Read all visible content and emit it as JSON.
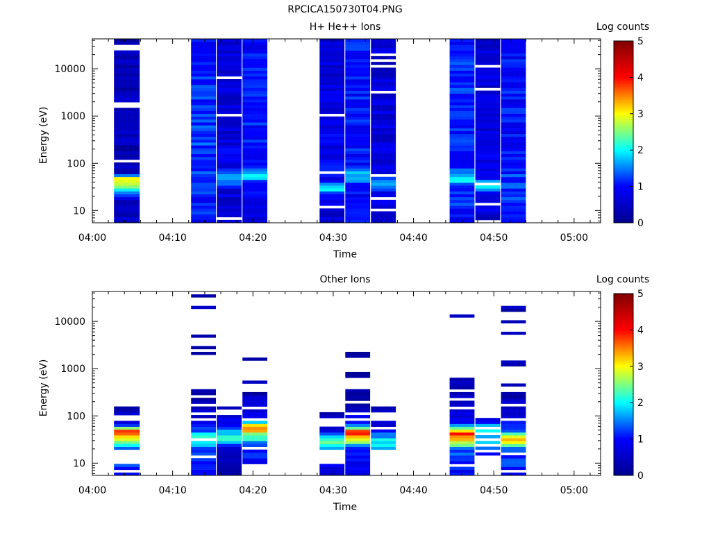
{
  "figure_title": "RPCICA150730T04.PNG",
  "chart_data": [
    {
      "type": "heatmap",
      "title": "H+ He++ Ions",
      "xlabel": "Time",
      "ylabel": "Energy (eV)",
      "colorbar_label": "Log counts",
      "x_ticks": [
        "04:00",
        "04:10",
        "04:20",
        "04:30",
        "04:40",
        "04:50",
        "05:00"
      ],
      "xlim_minutes": [
        0,
        63.3
      ],
      "y_scale": "log",
      "y_ticks": [
        "10",
        "100",
        "1000",
        "10000"
      ],
      "ylim": [
        5.5,
        43000
      ],
      "zlim": [
        0,
        5
      ],
      "colorbar_ticks": [
        "0",
        "1",
        "2",
        "3",
        "4",
        "5"
      ],
      "colormap": [
        "#00008f",
        "#0000ff",
        "#00ffff",
        "#ffff00",
        "#ff0000",
        "#800000"
      ],
      "columns": [
        {
          "t": [
            2.7,
            5.9
          ],
          "profile": [
            [
              5.5,
              0.45
            ],
            [
              17,
              0.6
            ],
            [
              25,
              1.3
            ],
            [
              30,
              2.2
            ],
            [
              38,
              2.6
            ],
            [
              50,
              3.0
            ],
            [
              60,
              0.6
            ],
            [
              200,
              0.35
            ],
            [
              43000,
              0.35
            ]
          ],
          "noise": 0.3,
          "gap": 0.1,
          "seed": 11
        },
        {
          "t": [
            12.3,
            15.4
          ],
          "profile": [
            [
              5.5,
              1.0
            ],
            [
              30,
              1.1
            ],
            [
              80,
              1.3
            ],
            [
              300,
              1.2
            ],
            [
              3000,
              1.1
            ],
            [
              43000,
              1.0
            ]
          ],
          "noise": 0.3,
          "gap": 0.0,
          "seed": 12
        },
        {
          "t": [
            15.5,
            18.6
          ],
          "profile": [
            [
              5.5,
              0.6
            ],
            [
              30,
              0.7
            ],
            [
              42,
              1.7
            ],
            [
              55,
              1.9
            ],
            [
              70,
              0.9
            ],
            [
              300,
              0.7
            ],
            [
              43000,
              0.6
            ]
          ],
          "noise": 0.3,
          "gap": 0.07,
          "seed": 13
        },
        {
          "t": [
            18.7,
            21.8
          ],
          "profile": [
            [
              5.5,
              0.8
            ],
            [
              40,
              0.9
            ],
            [
              48,
              1.7
            ],
            [
              60,
              1.9
            ],
            [
              75,
              1.1
            ],
            [
              43000,
              1.0
            ]
          ],
          "noise": 0.3,
          "gap": 0.0,
          "seed": 14
        },
        {
          "t": [
            28.3,
            31.4
          ],
          "profile": [
            [
              5.5,
              0.6
            ],
            [
              20,
              0.8
            ],
            [
              28,
              1.8
            ],
            [
              35,
              1.9
            ],
            [
              45,
              0.9
            ],
            [
              43000,
              0.6
            ]
          ],
          "noise": 0.3,
          "gap": 0.08,
          "seed": 15
        },
        {
          "t": [
            31.5,
            34.6
          ],
          "profile": [
            [
              5.5,
              1.0
            ],
            [
              35,
              1.0
            ],
            [
              50,
              1.9
            ],
            [
              60,
              1.7
            ],
            [
              80,
              1.0
            ],
            [
              43000,
              1.1
            ]
          ],
          "noise": 0.3,
          "gap": 0.0,
          "seed": 16
        },
        {
          "t": [
            34.7,
            37.8
          ],
          "profile": [
            [
              5.5,
              0.6
            ],
            [
              25,
              0.8
            ],
            [
              35,
              2.0
            ],
            [
              45,
              1.7
            ],
            [
              60,
              0.7
            ],
            [
              43000,
              0.6
            ]
          ],
          "noise": 0.3,
          "gap": 0.08,
          "seed": 17
        },
        {
          "t": [
            44.5,
            47.6
          ],
          "profile": [
            [
              5.5,
              1.0
            ],
            [
              30,
              1.2
            ],
            [
              45,
              1.9
            ],
            [
              60,
              1.5
            ],
            [
              90,
              1.1
            ],
            [
              43000,
              1.1
            ]
          ],
          "noise": 0.3,
          "gap": 0.0,
          "seed": 18
        },
        {
          "t": [
            47.7,
            50.8
          ],
          "profile": [
            [
              5.5,
              0.6
            ],
            [
              25,
              0.9
            ],
            [
              30,
              1.7
            ],
            [
              38,
              1.8
            ],
            [
              48,
              0.8
            ],
            [
              43000,
              0.6
            ]
          ],
          "noise": 0.3,
          "gap": 0.08,
          "seed": 19
        },
        {
          "t": [
            50.9,
            54.0
          ],
          "profile": [
            [
              5.5,
              1.0
            ],
            [
              40,
              1.2
            ],
            [
              80,
              1.1
            ],
            [
              500,
              1.0
            ],
            [
              43000,
              1.0
            ]
          ],
          "noise": 0.3,
          "gap": 0.0,
          "seed": 20
        }
      ]
    },
    {
      "type": "heatmap",
      "title": "Other Ions",
      "xlabel": "Time",
      "ylabel": "Energy (eV)",
      "colorbar_label": "Log counts",
      "x_ticks": [
        "04:00",
        "04:10",
        "04:20",
        "04:30",
        "04:40",
        "04:50",
        "05:00"
      ],
      "xlim_minutes": [
        0,
        63.3
      ],
      "y_scale": "log",
      "y_ticks": [
        "10",
        "100",
        "1000",
        "10000"
      ],
      "ylim": [
        5.5,
        43000
      ],
      "zlim": [
        0,
        5
      ],
      "colorbar_ticks": [
        "0",
        "1",
        "2",
        "3",
        "4",
        "5"
      ],
      "colormap": [
        "#00008f",
        "#0000ff",
        "#00ffff",
        "#ffff00",
        "#ff0000",
        "#800000"
      ],
      "columns": [
        {
          "t": [
            2.7,
            5.9
          ],
          "profile": [
            [
              20,
              1.2
            ],
            [
              25,
              2.2
            ],
            [
              32,
              3.0
            ],
            [
              40,
              3.4
            ],
            [
              50,
              3.8
            ],
            [
              60,
              1.4
            ],
            [
              80,
              0.6
            ],
            [
              150,
              0.3
            ]
          ],
          "noise": 0.2,
          "fill": [
            [
              20,
              80
            ],
            [
              5.5,
              9.5
            ]
          ],
          "sparse": [
            [
              80,
              150,
              0.6
            ]
          ],
          "seed": 31
        },
        {
          "t": [
            12.3,
            15.4
          ],
          "profile": [
            [
              5.5,
              0.9
            ],
            [
              20,
              1.2
            ],
            [
              30,
              2.0
            ],
            [
              38,
              2.4
            ],
            [
              50,
              1.2
            ],
            [
              100,
              0.6
            ],
            [
              300,
              0.3
            ]
          ],
          "noise": 0.25,
          "fill": [
            [
              5.5,
              80
            ]
          ],
          "sparse": [
            [
              80,
              300,
              0.7
            ],
            [
              300,
              40000,
              0.17
            ]
          ],
          "seed": 32
        },
        {
          "t": [
            15.5,
            18.6
          ],
          "profile": [
            [
              5.5,
              0.3
            ],
            [
              20,
              0.4
            ],
            [
              28,
              2.0
            ],
            [
              35,
              2.3
            ],
            [
              45,
              1.8
            ],
            [
              60,
              1.0
            ],
            [
              170,
              0.4
            ]
          ],
          "noise": 0.2,
          "fill": [
            [
              5.5,
              70
            ]
          ],
          "sparse": [
            [
              70,
              170,
              0.55
            ]
          ],
          "seed": 33
        },
        {
          "t": [
            18.7,
            21.8
          ],
          "profile": [
            [
              9.5,
              0.9
            ],
            [
              25,
              1.2
            ],
            [
              32,
              2.0
            ],
            [
              40,
              2.2
            ],
            [
              50,
              3.5
            ],
            [
              60,
              3.7
            ],
            [
              80,
              1.1
            ],
            [
              300,
              0.3
            ]
          ],
          "noise": 0.25,
          "fill": [
            [
              9.5,
              100
            ]
          ],
          "sparse": [
            [
              100,
              300,
              0.7
            ],
            [
              300,
              40000,
              0.05
            ]
          ],
          "seed": 34
        },
        {
          "t": [
            28.3,
            31.4
          ],
          "profile": [
            [
              5.5,
              0.3
            ],
            [
              20,
              1.8
            ],
            [
              28,
              2.3
            ],
            [
              35,
              2.0
            ],
            [
              45,
              0.9
            ],
            [
              80,
              0.4
            ],
            [
              160,
              0.3
            ]
          ],
          "noise": 0.25,
          "fill": [
            [
              20,
              60
            ],
            [
              5.5,
              9.5
            ]
          ],
          "sparse": [
            [
              60,
              160,
              0.7
            ]
          ],
          "seed": 35
        },
        {
          "t": [
            31.5,
            34.6
          ],
          "profile": [
            [
              5.5,
              0.8
            ],
            [
              20,
              1.0
            ],
            [
              30,
              2.8
            ],
            [
              38,
              3.6
            ],
            [
              50,
              4.0
            ],
            [
              60,
              1.6
            ],
            [
              100,
              0.6
            ],
            [
              300,
              0.3
            ]
          ],
          "noise": 0.25,
          "fill": [
            [
              5.5,
              100
            ]
          ],
          "sparse": [
            [
              100,
              300,
              0.7
            ],
            [
              300,
              3200,
              0.2
            ]
          ],
          "seed": 36
        },
        {
          "t": [
            34.7,
            37.8
          ],
          "profile": [
            [
              20,
              1.8
            ],
            [
              30,
              2.0
            ],
            [
              40,
              1.5
            ],
            [
              60,
              0.6
            ],
            [
              170,
              0.3
            ]
          ],
          "noise": 0.2,
          "fill": [
            [
              20,
              45
            ]
          ],
          "sparse": [
            [
              45,
              170,
              0.5
            ]
          ],
          "seed": 37
        },
        {
          "t": [
            44.5,
            47.6
          ],
          "profile": [
            [
              5.5,
              0.9
            ],
            [
              20,
              1.4
            ],
            [
              28,
              3.0
            ],
            [
              35,
              3.6
            ],
            [
              45,
              3.8
            ],
            [
              55,
              2.2
            ],
            [
              70,
              1.0
            ],
            [
              150,
              0.5
            ],
            [
              600,
              0.3
            ]
          ],
          "noise": 0.25,
          "fill": [
            [
              5.5,
              90
            ]
          ],
          "sparse": [
            [
              90,
              600,
              0.6
            ],
            [
              600,
              20000,
              0.08
            ]
          ],
          "seed": 38
        },
        {
          "t": [
            47.7,
            50.8
          ],
          "profile": [
            [
              12,
              0.3
            ],
            [
              25,
              1.8
            ],
            [
              30,
              2.0
            ],
            [
              40,
              1.8
            ],
            [
              55,
              2.6
            ],
            [
              70,
              1.0
            ],
            [
              140,
              0.3
            ]
          ],
          "noise": 0.25,
          "fill": [
            [
              15,
              70
            ],
            [
              12,
              15
            ]
          ],
          "sparse": [
            [
              70,
              140,
              0.5
            ],
            [
              140,
              3800,
              0.03
            ]
          ],
          "seed": 39
        },
        {
          "t": [
            50.9,
            54.0
          ],
          "profile": [
            [
              5.5,
              1.0
            ],
            [
              20,
              1.3
            ],
            [
              28,
              3.0
            ],
            [
              35,
              3.2
            ],
            [
              45,
              1.6
            ],
            [
              70,
              1.0
            ],
            [
              120,
              0.6
            ],
            [
              300,
              0.3
            ]
          ],
          "noise": 0.25,
          "fill": [
            [
              5.5,
              120
            ]
          ],
          "sparse": [
            [
              120,
              300,
              0.7
            ],
            [
              300,
              20000,
              0.16
            ]
          ],
          "seed": 40
        }
      ]
    }
  ]
}
